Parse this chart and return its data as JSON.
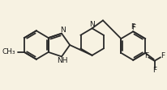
{
  "background_color": "#f7f2e2",
  "bond_color": "#2a2a2a",
  "bond_width": 1.3,
  "text_color": "#1a1a1a",
  "font_size": 6.5,
  "fig_width": 2.07,
  "fig_height": 1.12,
  "dpi": 100,
  "xlim": [
    0,
    207
  ],
  "ylim": [
    0,
    112
  ]
}
